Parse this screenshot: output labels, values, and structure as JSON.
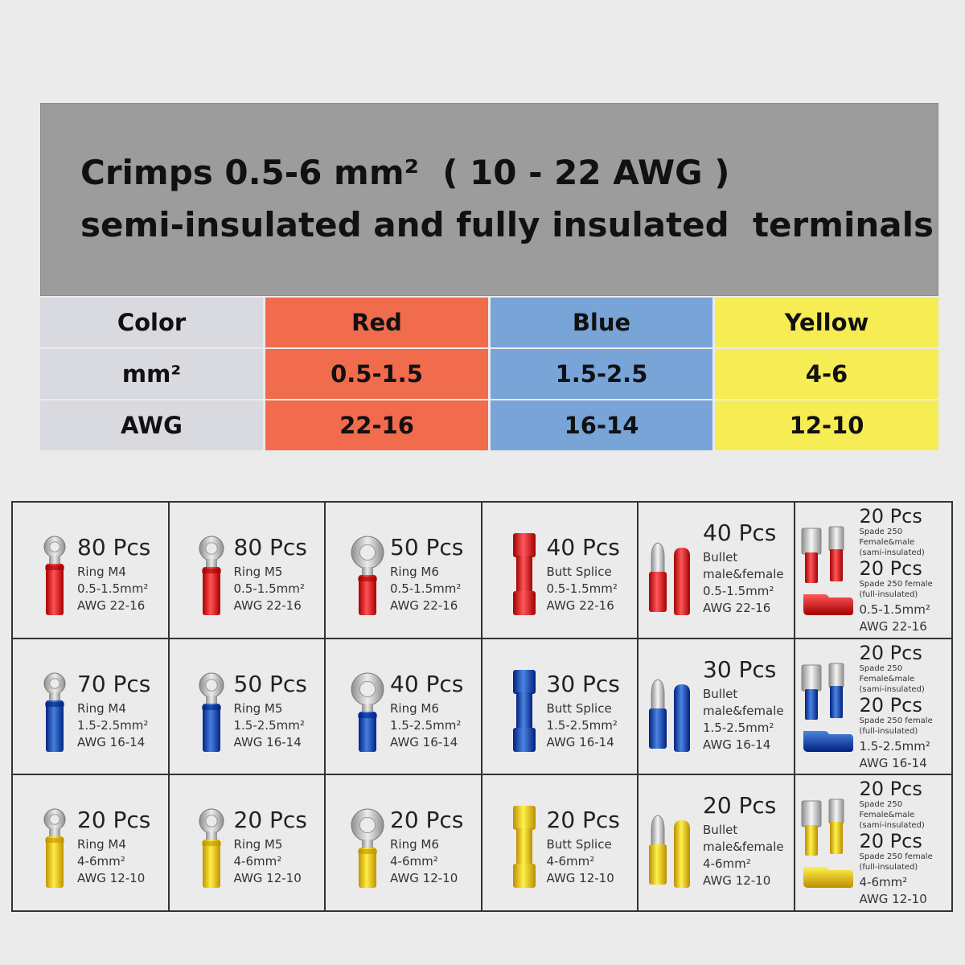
{
  "header": {
    "title_line1": "Crimps 0.5-6 mm²  ( 10 - 22 AWG )",
    "title_line2": "semi-insulated and fully insulated  terminals"
  },
  "spec_table": {
    "colors": {
      "label_bg": "#d9d9e0",
      "red": "#f06c4d",
      "blue": "#78a4d8",
      "yellow": "#f6ec54"
    },
    "rows": [
      {
        "label": "Color",
        "values": [
          "Red",
          "Blue",
          "Yellow"
        ]
      },
      {
        "label": "mm²",
        "values": [
          "0.5-1.5",
          "1.5-2.5",
          "4-6"
        ]
      },
      {
        "label": "AWG",
        "values": [
          "22-16",
          "16-14",
          "12-10"
        ]
      }
    ]
  },
  "terminal_colors": {
    "red": "#d92a2e",
    "blue": "#1f57b5",
    "yellow": "#f3c51e"
  },
  "grid": [
    [
      {
        "type": "ring-m4",
        "color": "red",
        "qty": "80 Pcs",
        "name": "Ring M4",
        "size": "0.5-1.5mm²",
        "awg": "AWG 22-16"
      },
      {
        "type": "ring-m5",
        "color": "red",
        "qty": "80 Pcs",
        "name": "Ring M5",
        "size": "0.5-1.5mm²",
        "awg": "AWG 22-16"
      },
      {
        "type": "ring-m6",
        "color": "red",
        "qty": "50 Pcs",
        "name": "Ring M6",
        "size": "0.5-1.5mm²",
        "awg": "AWG 22-16"
      },
      {
        "type": "butt",
        "color": "red",
        "qty": "40 Pcs",
        "name": "Butt Splice",
        "size": "0.5-1.5mm²",
        "awg": "AWG 22-16"
      },
      {
        "type": "bullet",
        "color": "red",
        "qty": "40 Pcs",
        "name": "Bullet",
        "name2": "male&female",
        "size": "0.5-1.5mm²",
        "awg": "AWG 22-16"
      },
      {
        "type": "spade",
        "color": "red",
        "qty": "20 Pcs",
        "sub1": "Spade 250",
        "sub2": "Female&male",
        "sub3": "(sami-insulated)",
        "qty2": "20 Pcs",
        "sub4": "Spade 250 female",
        "sub5": "(full-insulated)",
        "size": "0.5-1.5mm²",
        "awg": "AWG 22-16"
      }
    ],
    [
      {
        "type": "ring-m4",
        "color": "blue",
        "qty": "70 Pcs",
        "name": "Ring M4",
        "size": "1.5-2.5mm²",
        "awg": "AWG 16-14"
      },
      {
        "type": "ring-m5",
        "color": "blue",
        "qty": "50 Pcs",
        "name": "Ring M5",
        "size": "1.5-2.5mm²",
        "awg": "AWG 16-14"
      },
      {
        "type": "ring-m6",
        "color": "blue",
        "qty": "40 Pcs",
        "name": "Ring M6",
        "size": "1.5-2.5mm²",
        "awg": "AWG 16-14"
      },
      {
        "type": "butt",
        "color": "blue",
        "qty": "30 Pcs",
        "name": "Butt Splice",
        "size": "1.5-2.5mm²",
        "awg": "AWG 16-14"
      },
      {
        "type": "bullet",
        "color": "blue",
        "qty": "30 Pcs",
        "name": "Bullet",
        "name2": "male&female",
        "size": "1.5-2.5mm²",
        "awg": "AWG 16-14"
      },
      {
        "type": "spade",
        "color": "blue",
        "qty": "20 Pcs",
        "sub1": "Spade 250",
        "sub2": "Female&male",
        "sub3": "(sami-insulated)",
        "qty2": "20 Pcs",
        "sub4": "Spade 250 female",
        "sub5": "(full-insulated)",
        "size": "1.5-2.5mm²",
        "awg": "AWG 16-14"
      }
    ],
    [
      {
        "type": "ring-m4",
        "color": "yellow",
        "qty": "20 Pcs",
        "name": "Ring M4",
        "size": "4-6mm²",
        "awg": "AWG 12-10"
      },
      {
        "type": "ring-m5",
        "color": "yellow",
        "qty": "20 Pcs",
        "name": "Ring M5",
        "size": "4-6mm²",
        "awg": "AWG 12-10"
      },
      {
        "type": "ring-m6",
        "color": "yellow",
        "qty": "20 Pcs",
        "name": "Ring M6",
        "size": "4-6mm²",
        "awg": "AWG 12-10"
      },
      {
        "type": "butt",
        "color": "yellow",
        "qty": "20 Pcs",
        "name": "Butt Splice",
        "size": "4-6mm²",
        "awg": "AWG 12-10"
      },
      {
        "type": "bullet",
        "color": "yellow",
        "qty": "20 Pcs",
        "name": "Bullet",
        "name2": "male&female",
        "size": "4-6mm²",
        "awg": "AWG 12-10"
      },
      {
        "type": "spade",
        "color": "yellow",
        "qty": "20 Pcs",
        "sub1": "Spade 250",
        "sub2": "Female&male",
        "sub3": "(sami-insulated)",
        "qty2": "20 Pcs",
        "sub4": "Spade 250 female",
        "sub5": "(full-insulated)",
        "size": "4-6mm²",
        "awg": "AWG 12-10"
      }
    ]
  ]
}
